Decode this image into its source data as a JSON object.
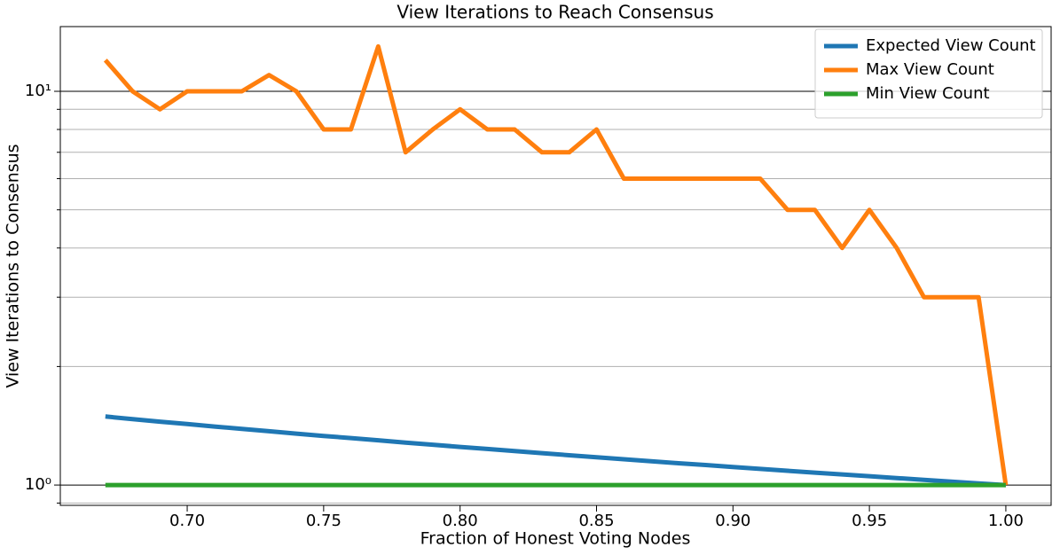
{
  "chart_data": {
    "type": "line",
    "title": "View Iterations to Reach Consensus",
    "x_label": "Fraction of Honest Voting Nodes",
    "y_label": "View Iterations to Consensus",
    "x": [
      0.67,
      0.68,
      0.69,
      0.7,
      0.71,
      0.72,
      0.73,
      0.74,
      0.75,
      0.76,
      0.77,
      0.78,
      0.79,
      0.8,
      0.81,
      0.82,
      0.83,
      0.84,
      0.85,
      0.86,
      0.87,
      0.88,
      0.89,
      0.9,
      0.91,
      0.92,
      0.93,
      0.94,
      0.95,
      0.96,
      0.97,
      0.98,
      0.99,
      1.0
    ],
    "series": [
      {
        "name": "Expected View Count",
        "color": "#1f77b4",
        "values": [
          1.493,
          1.471,
          1.449,
          1.429,
          1.408,
          1.389,
          1.37,
          1.351,
          1.333,
          1.316,
          1.299,
          1.282,
          1.266,
          1.25,
          1.235,
          1.22,
          1.205,
          1.19,
          1.176,
          1.163,
          1.149,
          1.136,
          1.124,
          1.111,
          1.099,
          1.087,
          1.075,
          1.064,
          1.053,
          1.042,
          1.031,
          1.02,
          1.01,
          1.0
        ]
      },
      {
        "name": "Max View Count",
        "color": "#ff7f0e",
        "values": [
          12,
          10,
          9,
          10,
          10,
          10,
          11,
          10,
          8,
          8,
          13,
          7,
          8,
          9,
          8,
          8,
          7,
          7,
          8,
          6,
          6,
          6,
          6,
          6,
          6,
          5,
          5,
          4,
          5,
          4,
          3,
          3,
          3,
          1
        ]
      },
      {
        "name": "Min View Count",
        "color": "#2ca02c",
        "values": [
          1,
          1,
          1,
          1,
          1,
          1,
          1,
          1,
          1,
          1,
          1,
          1,
          1,
          1,
          1,
          1,
          1,
          1,
          1,
          1,
          1,
          1,
          1,
          1,
          1,
          1,
          1,
          1,
          1,
          1,
          1,
          1,
          1,
          1
        ]
      }
    ],
    "xlim": [
      0.6535,
      1.0166
    ],
    "ylim": [
      0.888,
      14.6
    ],
    "log_y": true,
    "xticks": [
      {
        "value": 0.7,
        "label": "0.70"
      },
      {
        "value": 0.75,
        "label": "0.75"
      },
      {
        "value": 0.8,
        "label": "0.80"
      },
      {
        "value": 0.85,
        "label": "0.85"
      },
      {
        "value": 0.9,
        "label": "0.90"
      },
      {
        "value": 0.95,
        "label": "0.95"
      },
      {
        "value": 1.0,
        "label": "1.00"
      }
    ],
    "yticks": [
      {
        "value": 1,
        "label": "10⁰"
      },
      {
        "value": 10,
        "label": "10¹"
      }
    ],
    "y_minor_ticks": [
      0.9,
      2,
      3,
      4,
      5,
      6,
      7,
      8,
      9
    ],
    "grid": true,
    "legend": "upper right"
  }
}
